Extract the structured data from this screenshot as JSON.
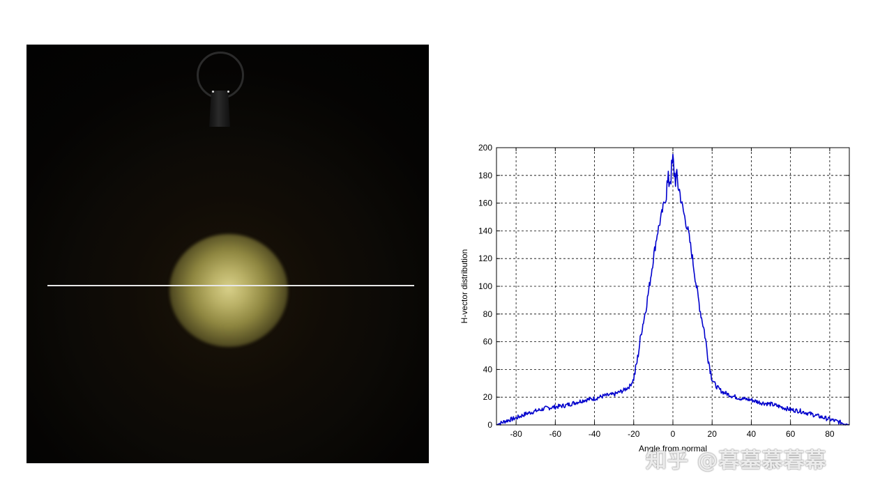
{
  "colors": {
    "series": "#0000cc",
    "grid": "#000000",
    "background": "#ffffff"
  },
  "watermark": {
    "text": "知乎 @暮墓慕暮幕"
  },
  "chart_data": {
    "type": "line",
    "title": "",
    "xlabel": "Angle from normal",
    "ylabel": "H-vector distribution",
    "xlim": [
      -90,
      90
    ],
    "ylim": [
      0,
      200
    ],
    "xticks": [
      -80,
      -60,
      -40,
      -20,
      0,
      20,
      40,
      60,
      80
    ],
    "yticks": [
      0,
      20,
      40,
      60,
      80,
      100,
      120,
      140,
      160,
      180,
      200
    ],
    "xtick_labels": [
      "-80",
      "-60",
      "-40",
      "-20",
      "0",
      "20",
      "40",
      "60",
      "80"
    ],
    "ytick_labels": [
      "0",
      "20",
      "40",
      "60",
      "80",
      "100",
      "120",
      "140",
      "160",
      "180",
      "200"
    ],
    "grid": true,
    "legend": "none",
    "series": [
      {
        "x": [
          -90,
          -85,
          -80,
          -75,
          -70,
          -65,
          -60,
          -55,
          -50,
          -45,
          -40,
          -35,
          -30,
          -25,
          -22,
          -20,
          -18,
          -16,
          -14,
          -12,
          -10,
          -8,
          -6,
          -4,
          -3,
          -2,
          -1,
          0,
          1,
          2,
          3,
          4,
          6,
          8,
          10,
          12,
          14,
          16,
          18,
          20,
          22,
          25,
          30,
          35,
          40,
          45,
          50,
          55,
          60,
          65,
          70,
          75,
          80,
          85,
          90
        ],
        "y": [
          0,
          3,
          5,
          8,
          10,
          12,
          13,
          14,
          16,
          18,
          19,
          21,
          22,
          25,
          28,
          33,
          48,
          68,
          82,
          100,
          120,
          138,
          150,
          163,
          172,
          176,
          180,
          190,
          180,
          176,
          172,
          163,
          150,
          138,
          120,
          100,
          82,
          68,
          48,
          33,
          28,
          24,
          21,
          19,
          18,
          16,
          15,
          13,
          11,
          10,
          8,
          6,
          4,
          2,
          0
        ]
      }
    ]
  }
}
